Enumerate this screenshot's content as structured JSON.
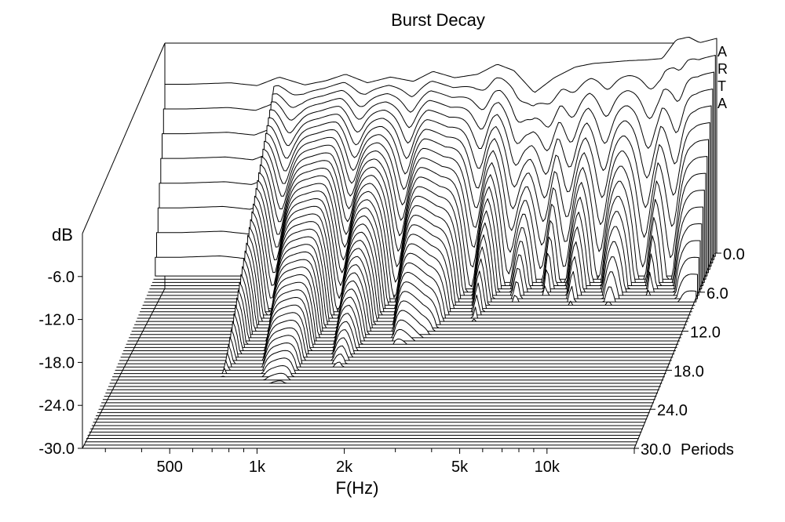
{
  "chart_data": {
    "type": "waterfall",
    "title": "Burst Decay",
    "brand_letters": [
      "A",
      "R",
      "T",
      "A"
    ],
    "ylabel": "dB",
    "xlabel": "F(Hz)",
    "zlabel_suffix": "Periods",
    "x_scale": "log",
    "xlim": [
      250,
      20000
    ],
    "ylim": [
      -30,
      0
    ],
    "zlim": [
      0,
      30
    ],
    "x_ticks": [
      {
        "value": 500,
        "label": "500"
      },
      {
        "value": 1000,
        "label": "1k"
      },
      {
        "value": 2000,
        "label": "2k"
      },
      {
        "value": 5000,
        "label": "5k"
      },
      {
        "value": 10000,
        "label": "10k"
      }
    ],
    "y_ticks": [
      {
        "value": -6,
        "label": "-6.0"
      },
      {
        "value": -12,
        "label": "-12.0"
      },
      {
        "value": -18,
        "label": "-18.0"
      },
      {
        "value": -24,
        "label": "-24.0"
      },
      {
        "value": -30,
        "label": "-30.0"
      }
    ],
    "z_ticks": [
      {
        "value": 0,
        "label": "0.0"
      },
      {
        "value": 6,
        "label": "6.0"
      },
      {
        "value": 12,
        "label": "12.0"
      },
      {
        "value": 18,
        "label": "18.0"
      },
      {
        "value": 24,
        "label": "24.0"
      },
      {
        "value": 30,
        "label": "30.0"
      }
    ],
    "front_curve": {
      "freq": [
        300,
        420,
        520,
        620,
        760,
        900,
        1050,
        1250,
        1500,
        1800,
        2100,
        2500,
        3000,
        3500,
        4000,
        4700,
        5500,
        6500,
        7500,
        8700,
        10000,
        11500,
        13000,
        14500,
        16000,
        17500,
        20000
      ],
      "db": [
        -6.4,
        -6.2,
        -6.6,
        -5.4,
        -6.5,
        -5.9,
        -5.0,
        -6.2,
        -5.4,
        -6.0,
        -4.6,
        -5.5,
        -5.0,
        -3.6,
        -4.5,
        -7.6,
        -5.5,
        -4.0,
        -3.5,
        -3.3,
        -3.1,
        -3.0,
        -2.8,
        -0.2,
        0.2,
        -0.6,
        0.0
      ]
    },
    "dip_frequencies": [
      700,
      1200,
      1800,
      3200,
      4200,
      5400,
      6500,
      8500,
      12000,
      15000
    ]
  }
}
